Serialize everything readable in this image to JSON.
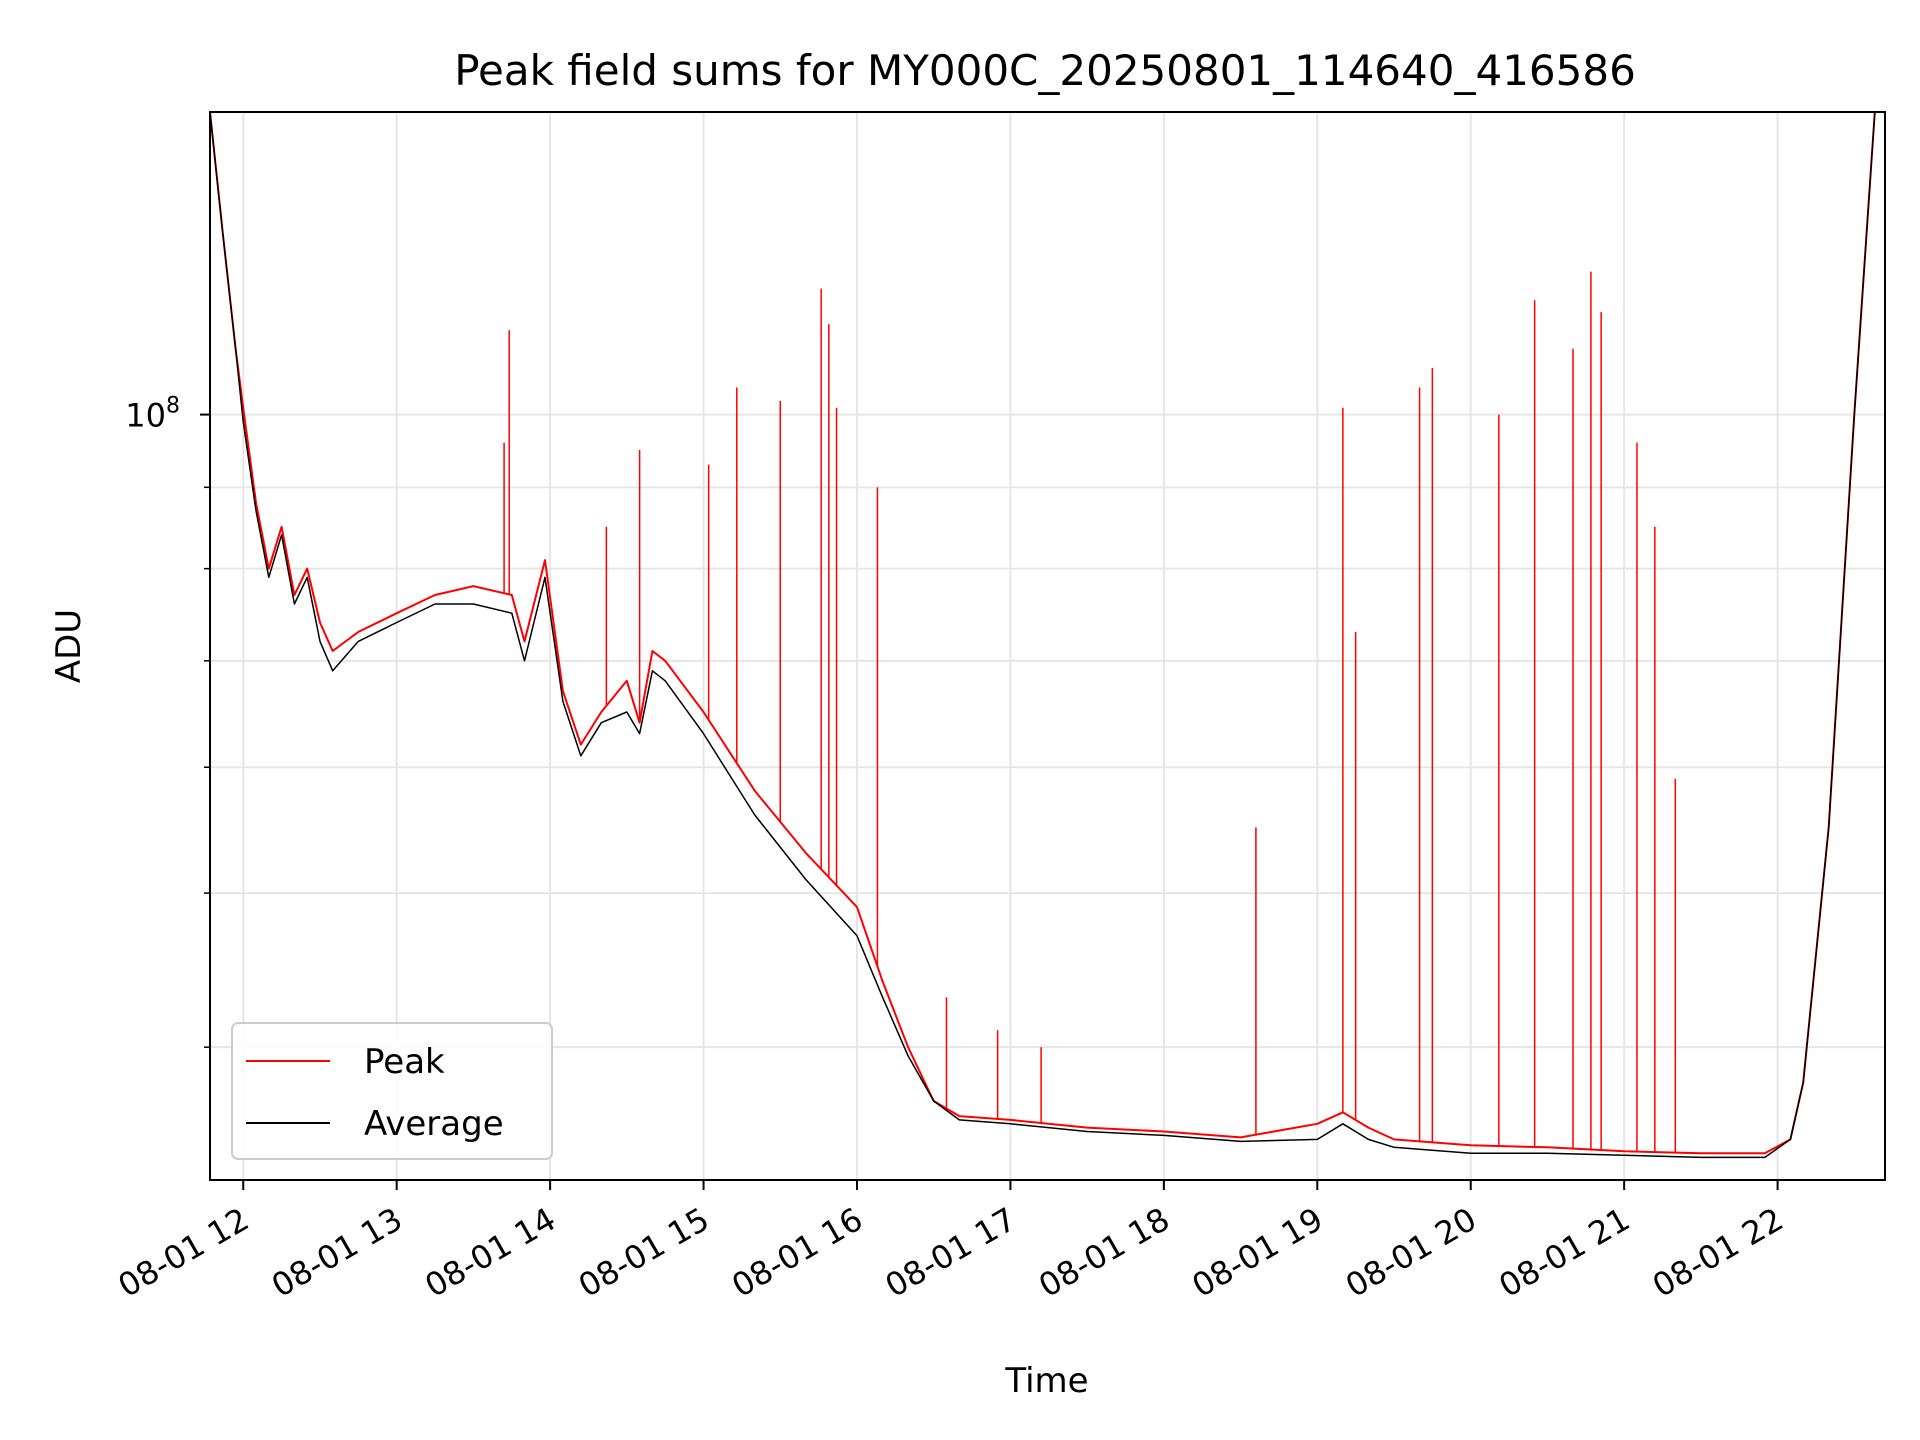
{
  "chart_data": {
    "type": "line",
    "title": "Peak field sums for MY000C_20250801_114640_416586",
    "xlabel": "Time",
    "ylabel": "ADU",
    "yscale": "log",
    "ylim": [
      33000000,
      155000000
    ],
    "xlim": [
      "2025-08-01 11:47",
      "2025-08-01 22:42"
    ],
    "x_tick_labels": [
      "08-01 12",
      "08-01 13",
      "08-01 14",
      "08-01 15",
      "08-01 16",
      "08-01 17",
      "08-01 18",
      "08-01 19",
      "08-01 20",
      "08-01 21",
      "08-01 22"
    ],
    "x_tick_hours": [
      "2025-08-01 12:00",
      "2025-08-01 13:00",
      "2025-08-01 14:00",
      "2025-08-01 15:00",
      "2025-08-01 16:00",
      "2025-08-01 17:00",
      "2025-08-01 18:00",
      "2025-08-01 19:00",
      "2025-08-01 20:00",
      "2025-08-01 21:00",
      "2025-08-01 22:00"
    ],
    "y_tick_label_base": "10",
    "y_tick_label_exp": "8",
    "y_major_tick": 100000000,
    "y_minor_ticks": [
      40000000,
      50000000,
      60000000,
      70000000,
      80000000,
      90000000
    ],
    "grid": true,
    "legend_position": "lower-left",
    "series": [
      {
        "name": "Peak",
        "color": "#ff0000",
        "x": [
          "2025-08-01 11:47",
          "2025-08-01 11:52",
          "2025-08-01 11:57",
          "2025-08-01 12:00",
          "2025-08-01 12:05",
          "2025-08-01 12:10",
          "2025-08-01 12:15",
          "2025-08-01 12:20",
          "2025-08-01 12:25",
          "2025-08-01 12:30",
          "2025-08-01 12:35",
          "2025-08-01 12:45",
          "2025-08-01 13:00",
          "2025-08-01 13:15",
          "2025-08-01 13:30",
          "2025-08-01 13:45",
          "2025-08-01 13:50",
          "2025-08-01 13:58",
          "2025-08-01 14:05",
          "2025-08-01 14:12",
          "2025-08-01 14:20",
          "2025-08-01 14:30",
          "2025-08-01 14:35",
          "2025-08-01 14:40",
          "2025-08-01 14:45",
          "2025-08-01 15:00",
          "2025-08-01 15:20",
          "2025-08-01 15:40",
          "2025-08-01 16:00",
          "2025-08-01 16:10",
          "2025-08-01 16:20",
          "2025-08-01 16:30",
          "2025-08-01 16:40",
          "2025-08-01 17:00",
          "2025-08-01 17:30",
          "2025-08-01 18:00",
          "2025-08-01 18:30",
          "2025-08-01 19:00",
          "2025-08-01 19:10",
          "2025-08-01 19:20",
          "2025-08-01 19:30",
          "2025-08-01 20:00",
          "2025-08-01 20:30",
          "2025-08-01 21:00",
          "2025-08-01 21:30",
          "2025-08-01 21:55",
          "2025-08-01 22:05",
          "2025-08-01 22:10",
          "2025-08-01 22:20",
          "2025-08-01 22:30",
          "2025-08-01 22:38"
        ],
        "y": [
          155000000,
          130000000,
          110000000,
          101000000,
          88000000,
          80000000,
          85000000,
          77000000,
          80000000,
          74000000,
          71000000,
          73000000,
          75000000,
          77000000,
          78000000,
          77000000,
          72000000,
          81000000,
          67000000,
          62000000,
          65000000,
          68000000,
          64000000,
          71000000,
          70000000,
          65000000,
          58000000,
          53000000,
          49000000,
          44000000,
          40000000,
          37000000,
          36200000,
          36000000,
          35600000,
          35400000,
          35100000,
          35800000,
          36400000,
          35600000,
          35000000,
          34700000,
          34600000,
          34400000,
          34300000,
          34300000,
          35000000,
          38000000,
          55000000,
          100000000,
          155000000
        ],
        "spikes": [
          {
            "x": "2025-08-01 13:42",
            "y": 96000000
          },
          {
            "x": "2025-08-01 13:44",
            "y": 113000000
          },
          {
            "x": "2025-08-01 14:22",
            "y": 85000000
          },
          {
            "x": "2025-08-01 14:35",
            "y": 95000000
          },
          {
            "x": "2025-08-01 15:02",
            "y": 93000000
          },
          {
            "x": "2025-08-01 15:13",
            "y": 104000000
          },
          {
            "x": "2025-08-01 15:30",
            "y": 102000000
          },
          {
            "x": "2025-08-01 15:46",
            "y": 120000000
          },
          {
            "x": "2025-08-01 15:49",
            "y": 114000000
          },
          {
            "x": "2025-08-01 15:52",
            "y": 101000000
          },
          {
            "x": "2025-08-01 16:08",
            "y": 90000000
          },
          {
            "x": "2025-08-01 16:35",
            "y": 43000000
          },
          {
            "x": "2025-08-01 16:55",
            "y": 41000000
          },
          {
            "x": "2025-08-01 17:12",
            "y": 40000000
          },
          {
            "x": "2025-08-01 18:36",
            "y": 55000000
          },
          {
            "x": "2025-08-01 19:10",
            "y": 101000000
          },
          {
            "x": "2025-08-01 19:15",
            "y": 73000000
          },
          {
            "x": "2025-08-01 19:40",
            "y": 104000000
          },
          {
            "x": "2025-08-01 19:45",
            "y": 107000000
          },
          {
            "x": "2025-08-01 20:11",
            "y": 100000000
          },
          {
            "x": "2025-08-01 20:25",
            "y": 118000000
          },
          {
            "x": "2025-08-01 20:40",
            "y": 110000000
          },
          {
            "x": "2025-08-01 20:47",
            "y": 123000000
          },
          {
            "x": "2025-08-01 20:51",
            "y": 116000000
          },
          {
            "x": "2025-08-01 21:05",
            "y": 96000000
          },
          {
            "x": "2025-08-01 21:12",
            "y": 85000000
          },
          {
            "x": "2025-08-01 21:20",
            "y": 59000000
          }
        ]
      },
      {
        "name": "Average",
        "color": "#000000",
        "x": [
          "2025-08-01 11:47",
          "2025-08-01 11:52",
          "2025-08-01 11:57",
          "2025-08-01 12:00",
          "2025-08-01 12:05",
          "2025-08-01 12:10",
          "2025-08-01 12:15",
          "2025-08-01 12:20",
          "2025-08-01 12:25",
          "2025-08-01 12:30",
          "2025-08-01 12:35",
          "2025-08-01 12:45",
          "2025-08-01 13:00",
          "2025-08-01 13:15",
          "2025-08-01 13:30",
          "2025-08-01 13:45",
          "2025-08-01 13:50",
          "2025-08-01 13:58",
          "2025-08-01 14:05",
          "2025-08-01 14:12",
          "2025-08-01 14:20",
          "2025-08-01 14:30",
          "2025-08-01 14:35",
          "2025-08-01 14:40",
          "2025-08-01 14:45",
          "2025-08-01 15:00",
          "2025-08-01 15:20",
          "2025-08-01 15:40",
          "2025-08-01 16:00",
          "2025-08-01 16:10",
          "2025-08-01 16:20",
          "2025-08-01 16:30",
          "2025-08-01 16:40",
          "2025-08-01 17:00",
          "2025-08-01 17:30",
          "2025-08-01 18:00",
          "2025-08-01 18:30",
          "2025-08-01 19:00",
          "2025-08-01 19:10",
          "2025-08-01 19:20",
          "2025-08-01 19:30",
          "2025-08-01 20:00",
          "2025-08-01 20:30",
          "2025-08-01 21:00",
          "2025-08-01 21:30",
          "2025-08-01 21:55",
          "2025-08-01 22:05",
          "2025-08-01 22:10",
          "2025-08-01 22:20",
          "2025-08-01 22:30",
          "2025-08-01 22:38"
        ],
        "y": [
          155000000,
          130000000,
          110000000,
          99000000,
          87000000,
          79000000,
          84000000,
          76000000,
          79000000,
          72000000,
          69000000,
          72000000,
          74000000,
          76000000,
          76000000,
          75000000,
          70000000,
          79000000,
          66000000,
          61000000,
          64000000,
          65000000,
          63000000,
          69000000,
          68000000,
          63000000,
          56000000,
          51000000,
          47000000,
          43000000,
          39500000,
          37000000,
          36000000,
          35800000,
          35400000,
          35200000,
          34900000,
          35000000,
          35800000,
          35000000,
          34600000,
          34300000,
          34300000,
          34200000,
          34100000,
          34100000,
          35000000,
          38000000,
          55000000,
          100000000,
          155000000
        ]
      }
    ]
  }
}
